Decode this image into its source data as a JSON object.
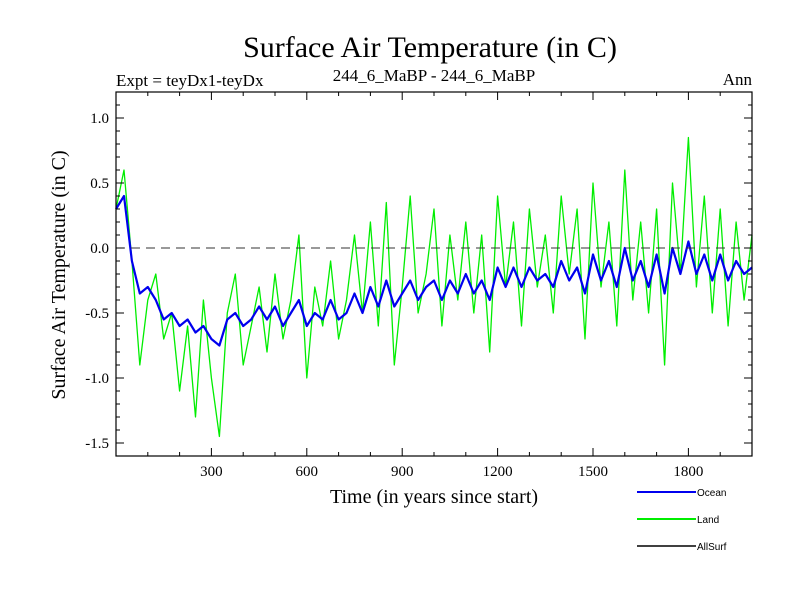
{
  "chart_data": {
    "type": "line",
    "title": "Surface Air Temperature (in C)",
    "subtitle_left": "Expt = teyDx1-teyDx",
    "subtitle_center": "244_6_MaBP - 244_6_MaBP",
    "subtitle_right": "Ann",
    "xlabel": "Time (in years since start)",
    "ylabel": "Surface Air Temperature (in C)",
    "xlim": [
      0,
      2000
    ],
    "ylim": [
      -1.6,
      1.2
    ],
    "xticks": [
      300,
      600,
      900,
      1200,
      1500,
      1800
    ],
    "xtick_labels": [
      "300",
      "600",
      "900",
      "1200",
      "1500",
      "1800"
    ],
    "yticks": [
      -1.5,
      -1.0,
      -0.5,
      0.0,
      0.5,
      1.0
    ],
    "ytick_labels": [
      "-1.5",
      "-1.0",
      "-0.5",
      "0.0",
      "0.5",
      "1.0"
    ],
    "zero_line": 0.0,
    "grid": false,
    "legend_position": "bottom-right",
    "series": [
      {
        "name": "Land",
        "color": "#00ee00",
        "x": [
          0,
          25,
          50,
          75,
          100,
          125,
          150,
          175,
          200,
          225,
          250,
          275,
          300,
          325,
          350,
          375,
          400,
          425,
          450,
          475,
          500,
          525,
          550,
          575,
          600,
          625,
          650,
          675,
          700,
          725,
          750,
          775,
          800,
          825,
          850,
          875,
          900,
          925,
          950,
          975,
          1000,
          1025,
          1050,
          1075,
          1100,
          1125,
          1150,
          1175,
          1200,
          1225,
          1250,
          1275,
          1300,
          1325,
          1350,
          1375,
          1400,
          1425,
          1450,
          1475,
          1500,
          1525,
          1550,
          1575,
          1600,
          1625,
          1650,
          1675,
          1700,
          1725,
          1750,
          1775,
          1800,
          1825,
          1850,
          1875,
          1900,
          1925,
          1950,
          1975,
          2000
        ],
        "values": [
          0.3,
          0.6,
          -0.1,
          -0.9,
          -0.4,
          -0.2,
          -0.7,
          -0.5,
          -1.1,
          -0.6,
          -1.3,
          -0.4,
          -1.0,
          -1.45,
          -0.5,
          -0.2,
          -0.9,
          -0.6,
          -0.3,
          -0.8,
          -0.2,
          -0.7,
          -0.4,
          0.1,
          -1.0,
          -0.3,
          -0.6,
          -0.1,
          -0.7,
          -0.4,
          0.1,
          -0.5,
          0.2,
          -0.6,
          0.35,
          -0.9,
          -0.3,
          0.4,
          -0.5,
          -0.2,
          0.3,
          -0.6,
          0.1,
          -0.4,
          0.2,
          -0.5,
          0.1,
          -0.8,
          0.4,
          -0.3,
          0.2,
          -0.6,
          0.3,
          -0.3,
          0.1,
          -0.5,
          0.4,
          -0.2,
          0.3,
          -0.7,
          0.5,
          -0.3,
          0.2,
          -0.6,
          0.6,
          -0.4,
          0.2,
          -0.5,
          0.3,
          -0.9,
          0.5,
          -0.2,
          0.85,
          -0.3,
          0.4,
          -0.5,
          0.3,
          -0.6,
          0.2,
          -0.4,
          0.1
        ]
      },
      {
        "name": "Ocean",
        "color": "#0000ee",
        "x": [
          0,
          25,
          50,
          75,
          100,
          125,
          150,
          175,
          200,
          225,
          250,
          275,
          300,
          325,
          350,
          375,
          400,
          425,
          450,
          475,
          500,
          525,
          550,
          575,
          600,
          625,
          650,
          675,
          700,
          725,
          750,
          775,
          800,
          825,
          850,
          875,
          900,
          925,
          950,
          975,
          1000,
          1025,
          1050,
          1075,
          1100,
          1125,
          1150,
          1175,
          1200,
          1225,
          1250,
          1275,
          1300,
          1325,
          1350,
          1375,
          1400,
          1425,
          1450,
          1475,
          1500,
          1525,
          1550,
          1575,
          1600,
          1625,
          1650,
          1675,
          1700,
          1725,
          1750,
          1775,
          1800,
          1825,
          1850,
          1875,
          1900,
          1925,
          1950,
          1975,
          2000
        ],
        "values": [
          0.3,
          0.4,
          -0.1,
          -0.35,
          -0.3,
          -0.4,
          -0.55,
          -0.5,
          -0.6,
          -0.55,
          -0.65,
          -0.6,
          -0.7,
          -0.75,
          -0.55,
          -0.5,
          -0.6,
          -0.55,
          -0.45,
          -0.55,
          -0.45,
          -0.6,
          -0.5,
          -0.4,
          -0.6,
          -0.5,
          -0.55,
          -0.4,
          -0.55,
          -0.5,
          -0.35,
          -0.5,
          -0.3,
          -0.45,
          -0.25,
          -0.45,
          -0.35,
          -0.25,
          -0.4,
          -0.3,
          -0.25,
          -0.4,
          -0.25,
          -0.35,
          -0.2,
          -0.35,
          -0.25,
          -0.4,
          -0.15,
          -0.3,
          -0.15,
          -0.3,
          -0.15,
          -0.25,
          -0.2,
          -0.3,
          -0.1,
          -0.25,
          -0.15,
          -0.35,
          -0.05,
          -0.25,
          -0.1,
          -0.3,
          0.0,
          -0.25,
          -0.1,
          -0.3,
          -0.05,
          -0.35,
          0.0,
          -0.2,
          0.05,
          -0.2,
          -0.05,
          -0.25,
          -0.05,
          -0.25,
          -0.1,
          -0.2,
          -0.15
        ]
      },
      {
        "name": "AllSurf",
        "color": "#000000",
        "x": [],
        "values": []
      }
    ]
  }
}
